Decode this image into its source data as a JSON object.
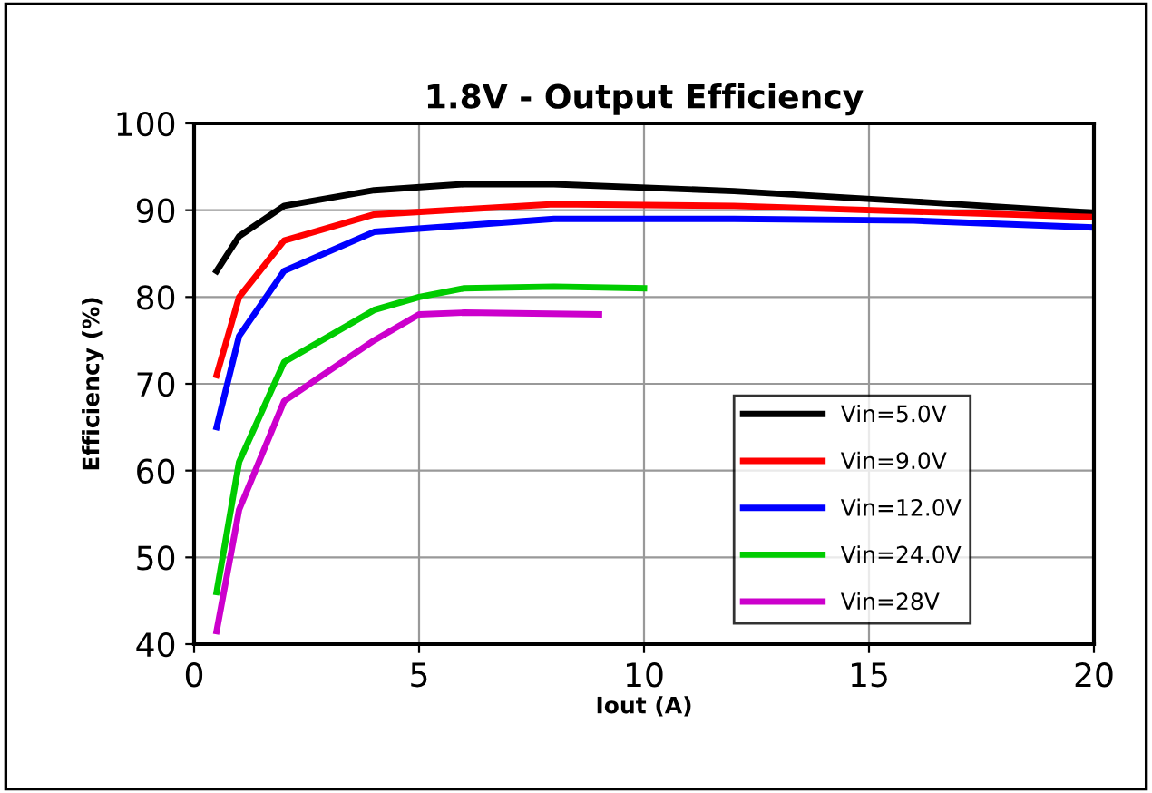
{
  "chart_data": {
    "type": "line",
    "title": "1.8V - Output Efficiency",
    "xlabel": "Iout (A)",
    "ylabel": "Efficiency (%)",
    "xlim": [
      0,
      20
    ],
    "xticks": [
      0,
      5,
      10,
      15,
      20
    ],
    "ylim": [
      40,
      100
    ],
    "yticks": [
      40,
      50,
      60,
      70,
      80,
      90,
      100
    ],
    "grid": true,
    "legend": "bottom right",
    "marker": "none",
    "line_style": "solid",
    "series": [
      {
        "name": "Vin=5.0V",
        "color": "#000000",
        "x": [
          0.5,
          1,
          2,
          4,
          6,
          8,
          12,
          16,
          20
        ],
        "values": [
          83,
          87,
          90.5,
          92.3,
          93,
          93,
          92.2,
          91,
          89.7
        ]
      },
      {
        "name": "Vin=9.0V",
        "color": "#ff0000",
        "x": [
          0.5,
          1,
          2,
          4,
          8,
          12,
          20
        ],
        "values": [
          71,
          80,
          86.5,
          89.5,
          90.7,
          90.5,
          89.2
        ]
      },
      {
        "name": "Vin=12.0V",
        "color": "#0000ff",
        "x": [
          0.5,
          1,
          2,
          4,
          8,
          12,
          16,
          20
        ],
        "values": [
          65,
          75.5,
          83,
          87.5,
          89,
          89,
          88.8,
          88
        ]
      },
      {
        "name": "Vin=24.0V",
        "color": "#00cc00",
        "x": [
          0.5,
          1,
          2,
          4,
          5,
          6,
          8,
          10
        ],
        "values": [
          46,
          61,
          72.5,
          78.5,
          80,
          81,
          81.2,
          81
        ]
      },
      {
        "name": "Vin=28V",
        "color": "#cc00cc",
        "x": [
          0.5,
          1,
          2,
          4,
          5,
          6,
          9
        ],
        "values": [
          41.5,
          55.5,
          68,
          75,
          78,
          78.2,
          78
        ]
      }
    ]
  }
}
